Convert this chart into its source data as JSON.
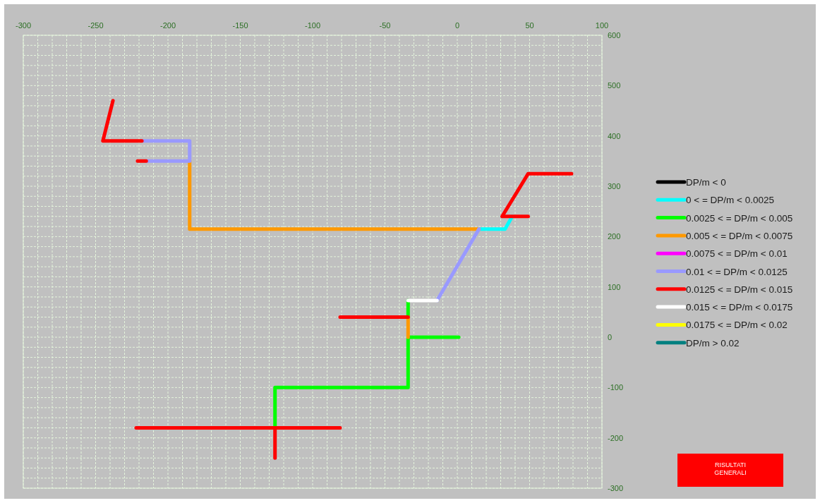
{
  "chart_data": {
    "type": "line",
    "xlim": [
      -300,
      100
    ],
    "ylim": [
      -300,
      600
    ],
    "xticks": [
      -300,
      {
        "value": -290,
        "label": null
      },
      {
        "value": -280,
        "label": null
      },
      {
        "value": -270,
        "label": null
      },
      {
        "value": -260,
        "label": null
      },
      -250,
      {
        "value": -240,
        "label": null
      },
      {
        "value": -230,
        "label": null
      },
      {
        "value": -220,
        "label": null
      },
      {
        "value": -210,
        "label": null
      },
      -200,
      {
        "value": -190,
        "label": null
      },
      {
        "value": -180,
        "label": null
      },
      {
        "value": -170,
        "label": null
      },
      {
        "value": -160,
        "label": null
      },
      -150,
      {
        "value": -140,
        "label": null
      },
      {
        "value": -130,
        "label": null
      },
      {
        "value": -120,
        "label": null
      },
      {
        "value": -110,
        "label": null
      },
      -100,
      {
        "value": -90,
        "label": null
      },
      {
        "value": -80,
        "label": null
      },
      {
        "value": -70,
        "label": null
      },
      {
        "value": -60,
        "label": null
      },
      -50,
      {
        "value": -40,
        "label": null
      },
      {
        "value": -30,
        "label": null
      },
      {
        "value": -20,
        "label": null
      },
      {
        "value": -10,
        "label": null
      },
      0,
      {
        "value": 10,
        "label": null
      },
      {
        "value": 20,
        "label": null
      },
      {
        "value": 30,
        "label": null
      },
      {
        "value": 40,
        "label": null
      },
      50,
      {
        "value": 60,
        "label": null
      },
      {
        "value": 70,
        "label": null
      },
      {
        "value": 80,
        "label": null
      },
      {
        "value": 90,
        "label": null
      },
      100
    ],
    "yticks": [
      -300,
      {
        "value": -280,
        "label": null
      },
      {
        "value": -260,
        "label": null
      },
      {
        "value": -240,
        "label": null
      },
      {
        "value": -220,
        "label": null
      },
      -200,
      {
        "value": -180,
        "label": null
      },
      {
        "value": -160,
        "label": null
      },
      {
        "value": -140,
        "label": null
      },
      {
        "value": -120,
        "label": null
      },
      -100,
      {
        "value": -80,
        "label": null
      },
      {
        "value": -60,
        "label": null
      },
      {
        "value": -40,
        "label": null
      },
      {
        "value": -20,
        "label": null
      },
      0,
      {
        "value": 20,
        "label": null
      },
      {
        "value": 40,
        "label": null
      },
      {
        "value": 60,
        "label": null
      },
      {
        "value": 80,
        "label": null
      },
      100,
      {
        "value": 120,
        "label": null
      },
      {
        "value": 140,
        "label": null
      },
      {
        "value": 160,
        "label": null
      },
      {
        "value": 180,
        "label": null
      },
      200,
      {
        "value": 220,
        "label": null
      },
      {
        "value": 240,
        "label": null
      },
      {
        "value": 260,
        "label": null
      },
      {
        "value": 280,
        "label": null
      },
      300,
      {
        "value": 320,
        "label": null
      },
      {
        "value": 340,
        "label": null
      },
      {
        "value": 360,
        "label": null
      },
      {
        "value": 380,
        "label": null
      },
      400,
      {
        "value": 420,
        "label": null
      },
      {
        "value": 440,
        "label": null
      },
      {
        "value": 460,
        "label": null
      },
      {
        "value": 480,
        "label": null
      },
      500,
      {
        "value": 520,
        "label": null
      },
      {
        "value": 540,
        "label": null
      },
      {
        "value": 560,
        "label": null
      },
      {
        "value": 580,
        "label": null
      },
      600
    ],
    "grid": true,
    "legend": "right",
    "series": [
      {
        "name": "DP/m < 0",
        "color": "#000000"
      },
      {
        "name": "0 < = DP/m < 0.0025",
        "color": "#00ffff",
        "x": [
          15,
          33,
          38
        ],
        "values": [
          215,
          215,
          240
        ]
      },
      {
        "name": "0.0025 < = DP/m < 0.005",
        "color": "#00ff00",
        "x": [
          -34,
          -34,
          null,
          -34,
          1,
          null,
          -34,
          -34,
          -126,
          -126
        ],
        "values": [
          73,
          40,
          null,
          0,
          0,
          null,
          0,
          -100,
          -100,
          -180
        ]
      },
      {
        "name": "0.005 < = DP/m < 0.0075",
        "color": "#ff9900",
        "x": [
          -185,
          -185,
          15,
          null,
          -34,
          -34
        ],
        "values": [
          350,
          215,
          215,
          null,
          40,
          0
        ]
      },
      {
        "name": "0.0075 < = DP/m < 0.01",
        "color": "#ff00ff"
      },
      {
        "name": "0.01 < = DP/m < 0.0125",
        "color": "#9999ff",
        "x": [
          -218,
          -185,
          -185,
          null,
          -215,
          -185,
          null,
          15,
          -14
        ],
        "values": [
          390,
          390,
          350,
          null,
          350,
          350,
          null,
          215,
          73
        ]
      },
      {
        "name": "0.0125 < = DP/m < 0.015",
        "color": "#ff0000",
        "x": [
          -238,
          -245,
          -218,
          null,
          -221,
          -215,
          null,
          79,
          49,
          31,
          49,
          null,
          -81,
          -34,
          null,
          -222,
          -81,
          null,
          -126,
          -126
        ],
        "values": [
          470,
          390,
          390,
          null,
          350,
          350,
          null,
          325,
          325,
          240,
          240,
          null,
          40,
          40,
          null,
          -180,
          -180,
          null,
          -180,
          -240
        ]
      },
      {
        "name": "0.015 < = DP/m < 0.0175",
        "color": "#ffffff",
        "x": [
          -34,
          -14
        ],
        "values": [
          73,
          73
        ]
      },
      {
        "name": "0.0175 < = DP/m < 0.02",
        "color": "#ffff00"
      },
      {
        "name": "DP/m > 0.02",
        "color": "#008080"
      }
    ],
    "annotations": [
      "RISULTATI GENERALI"
    ]
  }
}
